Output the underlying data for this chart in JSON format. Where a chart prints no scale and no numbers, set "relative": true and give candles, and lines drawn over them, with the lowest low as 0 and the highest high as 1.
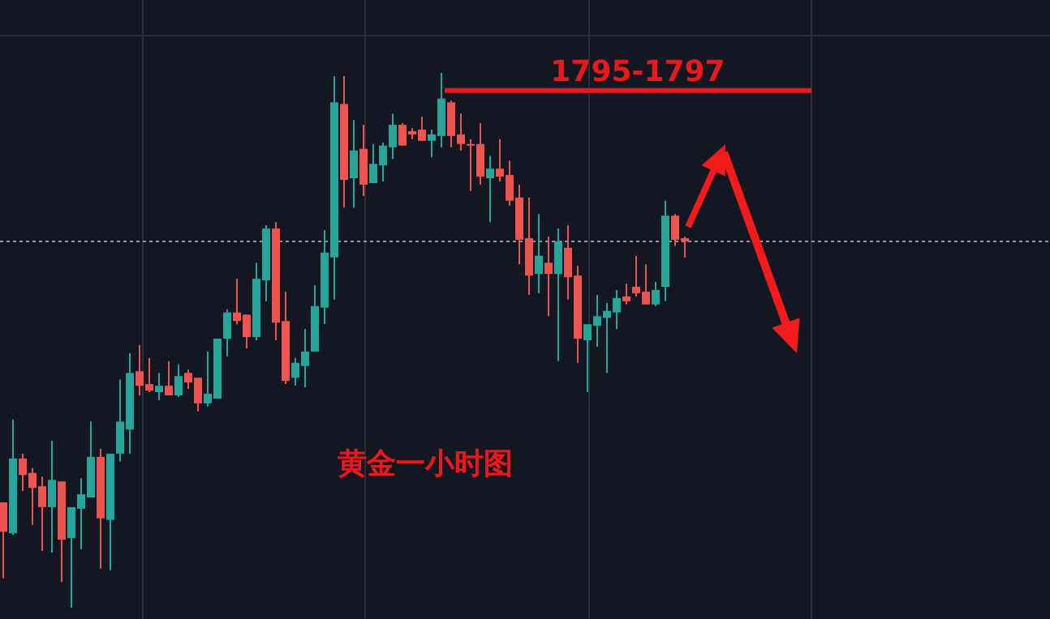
{
  "chart_data": {
    "type": "candlestick",
    "relative": true,
    "grid": true,
    "categories": [
      null,
      null,
      null,
      null,
      null,
      null,
      null,
      null,
      null,
      null,
      null,
      null,
      null,
      null,
      null,
      null,
      null,
      null,
      null,
      null,
      null,
      null,
      null,
      null,
      null,
      null,
      null,
      null,
      null,
      null,
      null,
      null,
      null,
      null,
      null,
      null,
      null,
      null,
      null,
      null,
      null,
      null,
      null,
      null,
      null,
      null,
      null,
      null,
      null,
      null,
      null,
      null,
      null,
      null,
      null,
      null,
      null,
      null,
      null,
      null,
      null,
      null,
      null,
      null,
      null,
      null,
      null,
      null,
      null,
      null,
      null
    ],
    "ohlc": [
      [
        0.197,
        0.197,
        0.055,
        0.142
      ],
      [
        0.139,
        0.352,
        0.136,
        0.279
      ],
      [
        0.279,
        0.288,
        0.218,
        0.248
      ],
      [
        0.252,
        0.261,
        0.155,
        0.224
      ],
      [
        0.227,
        0.245,
        0.106,
        0.188
      ],
      [
        0.188,
        0.312,
        0.103,
        0.239
      ],
      [
        0.236,
        0.236,
        0.048,
        0.127
      ],
      [
        0.13,
        0.188,
        0,
        0.188
      ],
      [
        0.185,
        0.242,
        0.109,
        0.212
      ],
      [
        0.206,
        0.348,
        0.206,
        0.282
      ],
      [
        0.282,
        0.297,
        0.073,
        0.167
      ],
      [
        0.164,
        0.288,
        0.07,
        0.288
      ],
      [
        0.288,
        0.427,
        0.273,
        0.348
      ],
      [
        0.333,
        0.476,
        0.288,
        0.439
      ],
      [
        0.442,
        0.491,
        0.397,
        0.415
      ],
      [
        0.418,
        0.467,
        0.403,
        0.406
      ],
      [
        0.403,
        0.439,
        0.388,
        0.415
      ],
      [
        0.415,
        0.461,
        0.397,
        0.397
      ],
      [
        0.397,
        0.455,
        0.394,
        0.433
      ],
      [
        0.439,
        0.445,
        0.409,
        0.421
      ],
      [
        0.43,
        0.43,
        0.367,
        0.382
      ],
      [
        0.382,
        0.479,
        0.376,
        0.4
      ],
      [
        0.391,
        0.503,
        0.391,
        0.503
      ],
      [
        0.503,
        0.558,
        0.47,
        0.552
      ],
      [
        0.552,
        0.615,
        0.53,
        0.536
      ],
      [
        0.548,
        0.548,
        0.485,
        0.506
      ],
      [
        0.506,
        0.645,
        0.5,
        0.615
      ],
      [
        0.612,
        0.715,
        0.573,
        0.709
      ],
      [
        0.709,
        0.721,
        0.5,
        0.533
      ],
      [
        0.536,
        0.591,
        0.418,
        0.424
      ],
      [
        0.43,
        0.467,
        0.415,
        0.458
      ],
      [
        0.452,
        0.521,
        0.412,
        0.479
      ],
      [
        0.479,
        0.603,
        0.479,
        0.564
      ],
      [
        0.561,
        0.706,
        0.53,
        0.664
      ],
      [
        0.655,
        0.994,
        0.576,
        0.945
      ],
      [
        0.942,
        0.994,
        0.748,
        0.8
      ],
      [
        0.803,
        0.912,
        0.748,
        0.855
      ],
      [
        0.858,
        0.903,
        0.77,
        0.791
      ],
      [
        0.794,
        0.867,
        0.794,
        0.83
      ],
      [
        0.827,
        0.87,
        0.797,
        0.864
      ],
      [
        0.861,
        0.924,
        0.839,
        0.903
      ],
      [
        0.903,
        0.906,
        0.864,
        0.864
      ],
      [
        0.891,
        0.897,
        0.876,
        0.885
      ],
      [
        0.894,
        0.918,
        0.873,
        0.873
      ],
      [
        0.873,
        0.894,
        0.842,
        0.885
      ],
      [
        0.882,
        1,
        0.861,
        0.952
      ],
      [
        0.945,
        0.948,
        0.861,
        0.882
      ],
      [
        0.885,
        0.924,
        0.855,
        0.867
      ],
      [
        0.867,
        0.876,
        0.779,
        0.864
      ],
      [
        0.867,
        0.906,
        0.791,
        0.806
      ],
      [
        0.803,
        0.845,
        0.721,
        0.821
      ],
      [
        0.821,
        0.876,
        0.797,
        0.806
      ],
      [
        0.809,
        0.836,
        0.752,
        0.761
      ],
      [
        0.767,
        0.791,
        0.642,
        0.688
      ],
      [
        0.691,
        0.767,
        0.585,
        0.621
      ],
      [
        0.624,
        0.736,
        0.588,
        0.658
      ],
      [
        0.645,
        0.694,
        0.545,
        0.624
      ],
      [
        0.624,
        0.709,
        0.461,
        0.685
      ],
      [
        0.673,
        0.715,
        0.576,
        0.618
      ],
      [
        0.621,
        0.639,
        0.458,
        0.503
      ],
      [
        0.5,
        0.53,
        0.403,
        0.53
      ],
      [
        0.527,
        0.585,
        0.488,
        0.545
      ],
      [
        0.542,
        0.57,
        0.439,
        0.555
      ],
      [
        0.552,
        0.594,
        0.521,
        0.579
      ],
      [
        0.582,
        0.606,
        0.567,
        0.573
      ],
      [
        0.6,
        0.658,
        0.582,
        0.588
      ],
      [
        0.591,
        0.642,
        0.567,
        0.567
      ],
      [
        0.567,
        0.609,
        0.564,
        0.594
      ],
      [
        0.6,
        0.761,
        0.573,
        0.733
      ],
      [
        0.733,
        0.736,
        0.676,
        0.688
      ],
      [
        0.691,
        0.694,
        0.655,
        0.685
      ]
    ],
    "ref_lines": [
      {
        "axis": "y",
        "value": 0.967,
        "color": "#e8191d",
        "line_style": "solid"
      },
      {
        "axis": "y",
        "value": 0.685,
        "line_style": "dotted",
        "color": "#9598a1"
      }
    ],
    "annotations": [
      "1795-1797",
      "黄金一小时图"
    ]
  }
}
